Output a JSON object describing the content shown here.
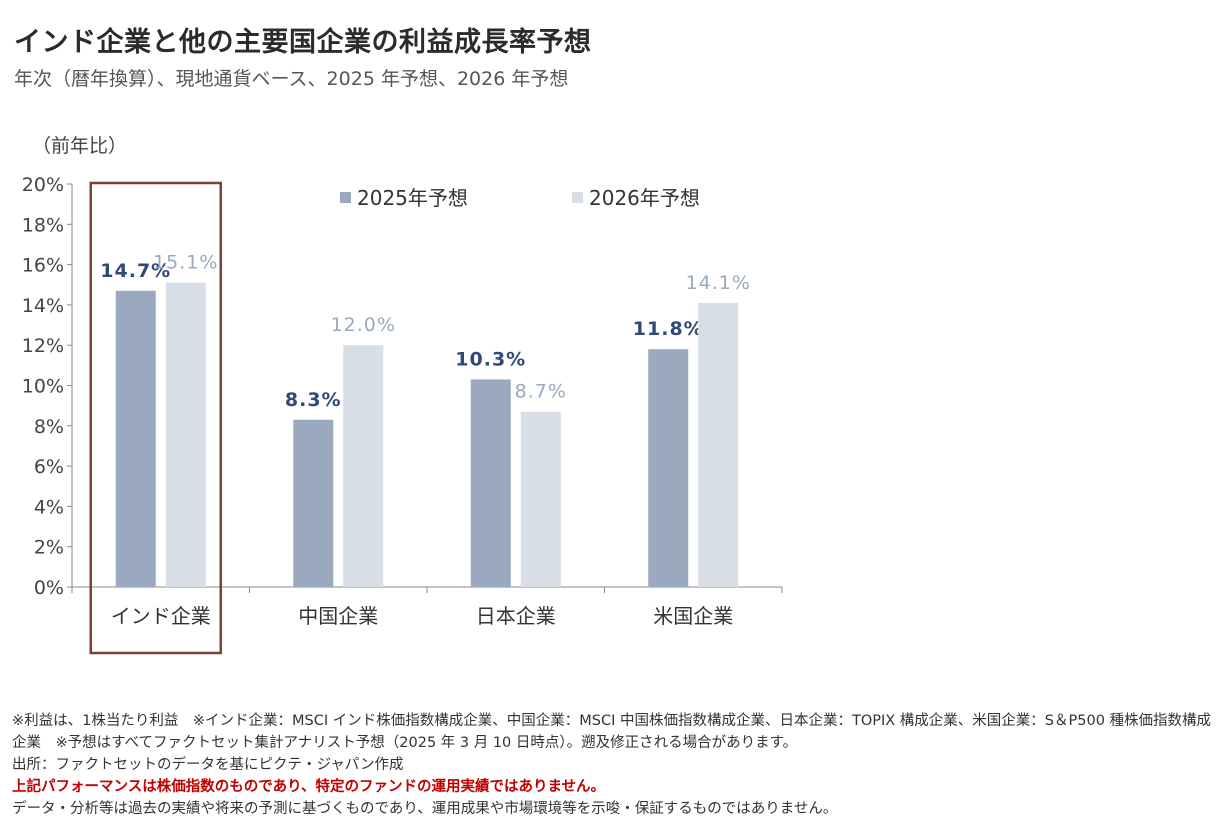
{
  "title": "インド企業と他の主要国企業の利益成長率予想",
  "subtitle": "年次（暦年換算）、現地通貨ベース、2025 年予想、2026 年予想",
  "chart_data": {
    "type": "bar",
    "ylabel": "（前年比）",
    "ylim": [
      0,
      20
    ],
    "yticks": [
      "0%",
      "2%",
      "4%",
      "6%",
      "8%",
      "10%",
      "12%",
      "14%",
      "16%",
      "18%",
      "20%"
    ],
    "categories": [
      "インド企業",
      "中国企業",
      "日本企業",
      "米国企業"
    ],
    "series": [
      {
        "name": "2025年予想",
        "values": [
          14.7,
          8.3,
          10.3,
          11.8
        ],
        "labels": [
          "14.7%",
          "8.3%",
          "10.3%",
          "11.8%"
        ],
        "color": "#9aa9bd",
        "label_color": "#2f4a78"
      },
      {
        "name": "2026年予想",
        "values": [
          15.1,
          12.0,
          8.7,
          14.1
        ],
        "labels": [
          "15.1%",
          "12.0%",
          "8.7%",
          "14.1%"
        ],
        "color": "#d8dee6",
        "label_color": "#9aa9bd"
      }
    ],
    "highlight": {
      "category": "インド企業",
      "color": "#7b4234"
    },
    "legend": "top-right",
    "grid": false
  },
  "notes": {
    "line1": "※利益は、1株当たり利益　※インド企業：MSCI インド株価指数構成企業、中国企業：MSCI 中国株価指数構成企業、日本企業：TOPIX 構成企業、米国企業：S＆P500 種株価指数構成企業　※予想はすべてファクトセット集計アナリスト予想（2025 年 3 月 10 日時点）。遡及修正される場合があります。",
    "source": "出所：ファクトセットのデータを基にピクテ・ジャパン作成",
    "warning": "上記パフォーマンスは株価指数のものであり、特定のファンドの運用実績ではありません。",
    "disclaimer": "データ・分析等は過去の実績や将来の予測に基づくものであり、運用成果や市場環境等を示唆・保証するものではありません。"
  }
}
